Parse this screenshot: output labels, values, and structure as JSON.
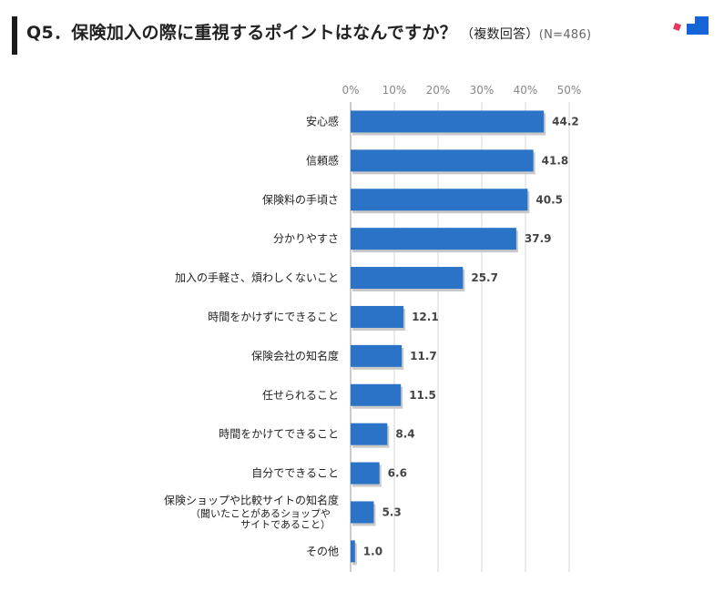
{
  "header": {
    "title": "Q5．保険加入の際に重視するポイントはなんですか？",
    "subtitle": "（複数回答）",
    "sample": "(N=486)"
  },
  "chart_data": {
    "type": "bar",
    "orientation": "horizontal",
    "title": "Q5．保険加入の際に重視するポイントはなんですか？（複数回答）(N=486)",
    "xlim": [
      0,
      50
    ],
    "ticks": [
      0,
      10,
      20,
      30,
      40,
      50
    ],
    "tick_labels": [
      "0%",
      "10%",
      "20%",
      "30%",
      "40%",
      "50%"
    ],
    "categories": [
      "安心感",
      "信頼感",
      "保険料の手頃さ",
      "分かりやすさ",
      "加入の手軽さ、煩わしくないこと",
      "時間をかけずにできること",
      "保険会社の知名度",
      "任せられること",
      "時間をかけてできること",
      "自分でできること",
      "保険ショップや比較サイトの知名度",
      "その他"
    ],
    "category_notes": [
      "",
      "",
      "",
      "",
      "",
      "",
      "",
      "",
      "",
      "",
      "（聞いたことがあるショップや\nサイトであること）",
      ""
    ],
    "values": [
      44.2,
      41.8,
      40.5,
      37.9,
      25.7,
      12.1,
      11.7,
      11.5,
      8.4,
      6.6,
      5.3,
      1.0
    ],
    "value_labels": [
      "44.2",
      "41.8",
      "40.5",
      "37.9",
      "25.7",
      "12.1",
      "11.7",
      "11.5",
      "8.4",
      "6.6",
      "5.3",
      "1.0"
    ],
    "bar_color": "#2b73c7",
    "grid": true
  }
}
